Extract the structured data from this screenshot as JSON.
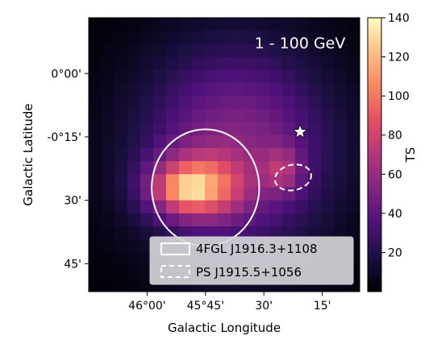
{
  "chart_data": {
    "type": "heatmap",
    "annotation": "1 - 100 GeV",
    "xlabel": "Galactic Longitude",
    "ylabel": "Galactic Latitude",
    "x_tick_labels": [
      "46°00'",
      "45°45'",
      "30'",
      "15'"
    ],
    "y_tick_labels": [
      "0°00'",
      "-0°15'",
      "30'",
      "45'"
    ],
    "x_ticks_deg": [
      46.0,
      45.75,
      45.5,
      45.25
    ],
    "y_ticks_deg": [
      0.0,
      -0.25,
      -0.5,
      -0.75
    ],
    "xlim_deg": [
      46.25,
      45.09
    ],
    "ylim_deg": [
      0.22,
      -0.86
    ],
    "colorbar": {
      "label": "TS",
      "range": [
        0,
        140
      ],
      "ticks": [
        20,
        40,
        60,
        80,
        100,
        120,
        140
      ],
      "colormap": "magma"
    },
    "grid": false,
    "legend_position": "lower-right",
    "legend": [
      {
        "label": "4FGL J1916.3+1108",
        "style": "solid-ellipse"
      },
      {
        "label": "PS J1915.5+1056",
        "style": "dashed-ellipse"
      }
    ],
    "sources": [
      {
        "name": "4FGL J1916.3+1108",
        "type": "solid-ellipse",
        "l": 45.75,
        "b": -0.45,
        "semi_major_deg": 0.23,
        "semi_minor_deg": 0.23
      },
      {
        "name": "PS J1915.5+1056",
        "type": "dashed-ellipse",
        "l": 45.375,
        "b": -0.41,
        "semi_major_deg": 0.08,
        "semi_minor_deg": 0.05
      },
      {
        "name": "star",
        "type": "star-marker",
        "l": 45.345,
        "b": -0.23
      }
    ],
    "ts_peak": {
      "l": 45.8,
      "b": -0.45,
      "ts": 138
    },
    "ts_secondary": {
      "l": 45.42,
      "b": -0.38,
      "ts": 95
    }
  }
}
